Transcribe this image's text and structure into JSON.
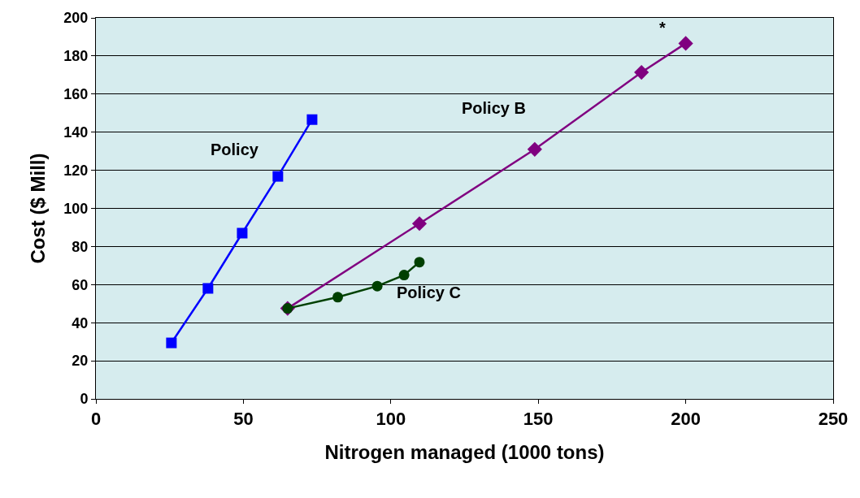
{
  "chart_data": {
    "type": "line",
    "xlabel": "Nitrogen managed (1000 tons)",
    "ylabel": "Cost ($ Mill)",
    "xlim": [
      0,
      250
    ],
    "xticks": [
      0,
      50,
      100,
      150,
      200,
      250
    ],
    "ylim": [
      0,
      200
    ],
    "yticks": [
      0,
      20,
      40,
      60,
      80,
      100,
      120,
      140,
      160,
      180,
      200
    ],
    "grid": "y",
    "series": [
      {
        "name": "Policy",
        "color": "#0000ff",
        "marker": "square",
        "x": [
          25.6,
          38,
          49.6,
          61.7,
          73.3
        ],
        "values": [
          29.4,
          58,
          87,
          116.8,
          146.6
        ]
      },
      {
        "name": "Policy B",
        "color": "#800080",
        "marker": "diamond",
        "x": [
          65,
          109.7,
          148.8,
          185,
          200
        ],
        "values": [
          47.5,
          92,
          131,
          171.4,
          186.6
        ]
      },
      {
        "name": "Policy C",
        "color": "#004000",
        "marker": "circle",
        "x": [
          65,
          82,
          95.4,
          104.5,
          109.7
        ],
        "values": [
          47.5,
          53.4,
          59.2,
          65,
          71.8
        ]
      }
    ],
    "annotations": [
      "*"
    ]
  }
}
